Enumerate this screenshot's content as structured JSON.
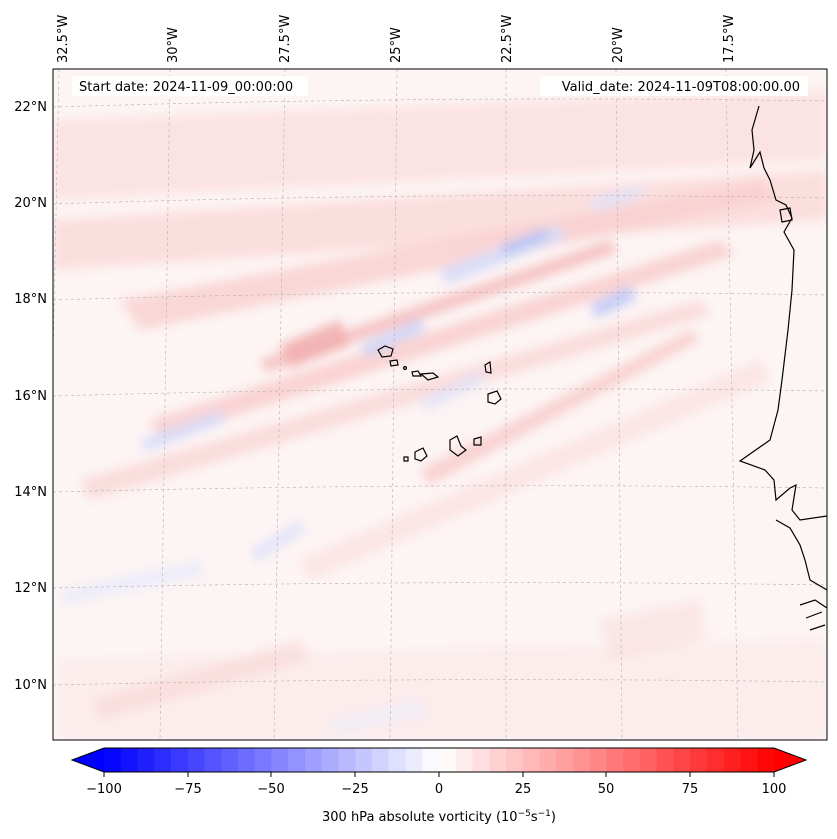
{
  "map": {
    "start_label": "Start date: 2024-11-09_00:00:00",
    "valid_label": "Valid_date: 2024-11-09T08:00:00.00",
    "lon_labels": [
      "32.5°W",
      "30°W",
      "27.5°W",
      "25°W",
      "22.5°W",
      "20°W",
      "17.5°W"
    ],
    "lat_labels": [
      "22°N",
      "20°N",
      "18°N",
      "16°N",
      "14°N",
      "12°N",
      "10°N"
    ]
  },
  "colorbar": {
    "ticks": [
      "−100",
      "−75",
      "−50",
      "−25",
      "0",
      "25",
      "50",
      "75",
      "100"
    ],
    "label_main": "300 hPa absolute vorticity (10",
    "label_exp1": "−5",
    "label_mid": "s",
    "label_exp2": "−1",
    "label_end": ")",
    "min_color": "#0000ff",
    "max_color": "#ff0000"
  },
  "colors": {
    "frame": "#000000",
    "grid": "#b0b0b0"
  }
}
